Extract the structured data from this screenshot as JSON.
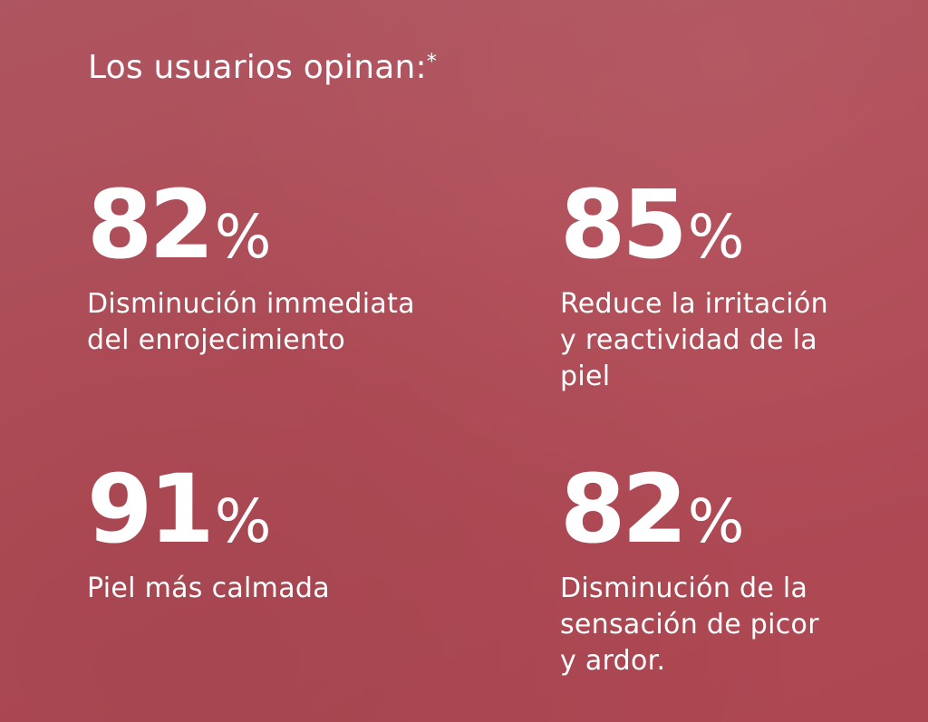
{
  "heading": {
    "text": "Los usuarios opinan:",
    "asterisk": "*"
  },
  "stats": [
    {
      "value": "82",
      "unit": "%",
      "caption": [
        "Disminución immediata",
        "del enrojecimiento"
      ]
    },
    {
      "value": "85",
      "unit": "%",
      "caption": [
        "Reduce la irritación",
        "y reactividad de la",
        "piel"
      ]
    },
    {
      "value": "91",
      "unit": "%",
      "caption": [
        "Piel más calmada"
      ]
    },
    {
      "value": "82",
      "unit": "%",
      "caption": [
        "Disminución de la",
        "sensación de picor",
        "y ardor."
      ]
    }
  ],
  "colors": {
    "background": "#b04e58",
    "text": "#ffffff"
  }
}
